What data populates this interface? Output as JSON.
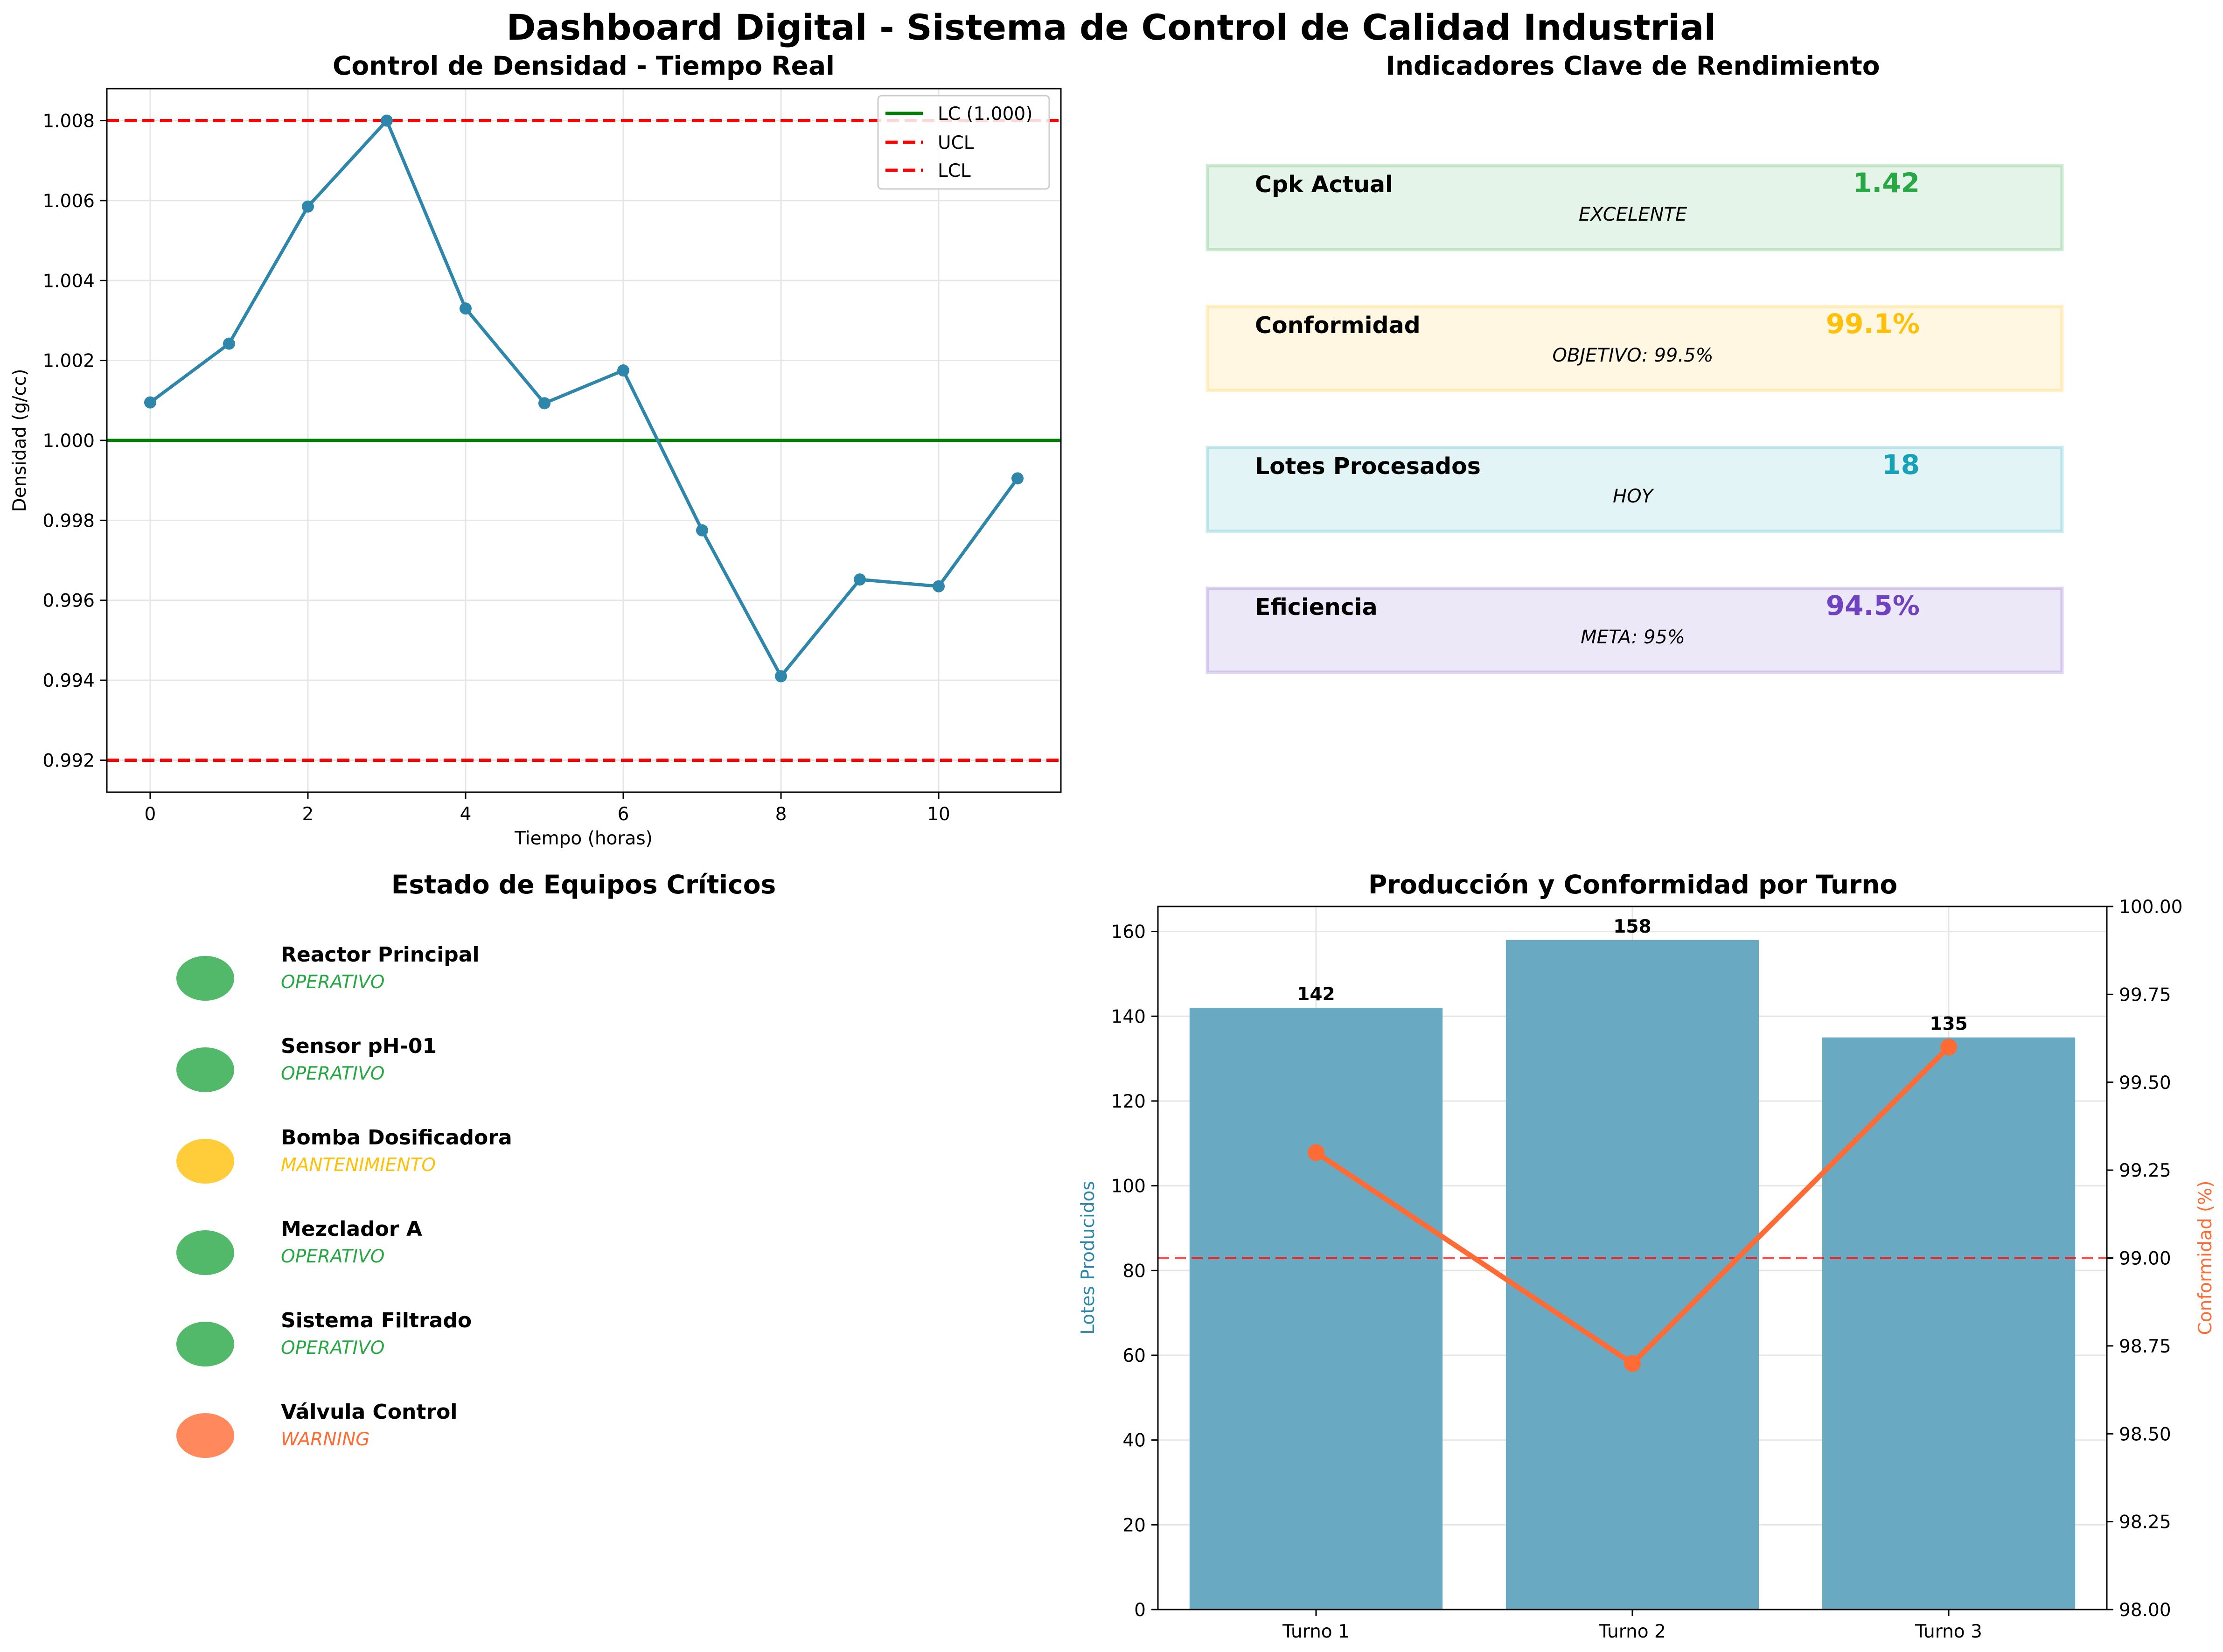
{
  "suptitle": "Dashboard Digital - Sistema de Control de Calidad Industrial",
  "colors": {
    "density_line": "#2e86ab",
    "center_line": "#008000",
    "limit_line": "#ff0000",
    "bar": "#6aa9c2",
    "conformity_line": "#ff6b35",
    "green": "#28a745",
    "yellow": "#ffc107",
    "teal": "#17a2b8",
    "purple": "#6f42c1",
    "orange": "#ff6b35"
  },
  "chart_data": [
    {
      "type": "line",
      "title": "Control de Densidad - Tiempo Real",
      "xlabel": "Tiempo (horas)",
      "ylabel": "Densidad (g/cc)",
      "x": [
        0,
        1,
        2,
        3,
        4,
        5,
        6,
        7,
        8,
        9,
        10,
        11
      ],
      "series": [
        {
          "values": [
            1.00095,
            1.00242,
            1.00585,
            1.008,
            1.0033,
            1.00093,
            1.00175,
            0.99775,
            0.9941,
            0.99652,
            0.99635,
            0.99905
          ]
        }
      ],
      "reference_lines": [
        {
          "name": "LC (1.000)",
          "value": 1.0,
          "style": "solid",
          "color": "#008000"
        },
        {
          "name": "UCL",
          "value": 1.008,
          "style": "dashed",
          "color": "#ff0000"
        },
        {
          "name": "LCL",
          "value": 0.992,
          "style": "dashed",
          "color": "#ff0000"
        }
      ],
      "xlim": [
        -0.55,
        11.55
      ],
      "ylim": [
        0.9912,
        1.0088
      ],
      "xticks": [
        "0",
        "2",
        "4",
        "6",
        "8",
        "10"
      ],
      "xtick_values": [
        0,
        2,
        4,
        6,
        8,
        10
      ],
      "yticks": [
        "0.992",
        "0.994",
        "0.996",
        "0.998",
        "1.000",
        "1.002",
        "1.004",
        "1.006",
        "1.008"
      ],
      "ytick_values": [
        0.992,
        0.994,
        0.996,
        0.998,
        1.0,
        1.002,
        1.004,
        1.006,
        1.008
      ],
      "grid": true,
      "legend": {
        "position": "top-right",
        "entries": [
          "LC (1.000)",
          "UCL",
          "LCL"
        ]
      }
    },
    {
      "type": "bar",
      "title": "Producción y Conformidad por Turno",
      "categories": [
        "Turno 1",
        "Turno 2",
        "Turno 3"
      ],
      "series": [
        {
          "axis": "left",
          "values": [
            142,
            158,
            135
          ],
          "data_labels": [
            "142",
            "158",
            "135"
          ]
        },
        {
          "axis": "right",
          "type": "line",
          "values": [
            99.3,
            98.7,
            99.6
          ]
        }
      ],
      "reference_lines": [
        {
          "axis": "right",
          "value": 99.0,
          "style": "dashed",
          "color": "#ff0000"
        }
      ],
      "ylabel": "Lotes Producidos",
      "ylabel_right": "Conformidad (%)",
      "ylim": [
        0,
        165.9
      ],
      "ylim_right": [
        98.0,
        100.0
      ],
      "yticks": [
        "0",
        "20",
        "40",
        "60",
        "80",
        "100",
        "120",
        "140",
        "160"
      ],
      "ytick_values": [
        0,
        20,
        40,
        60,
        80,
        100,
        120,
        140,
        160
      ],
      "yticks_right": [
        "98.00",
        "98.25",
        "98.50",
        "98.75",
        "99.00",
        "99.25",
        "99.50",
        "99.75",
        "100.00"
      ],
      "ytick_values_right": [
        98.0,
        98.25,
        98.5,
        98.75,
        99.0,
        99.25,
        99.5,
        99.75,
        100.0
      ],
      "grid": true
    }
  ],
  "kpi_panel": {
    "title": "Indicadores Clave de Rendimiento",
    "items": [
      {
        "label": "Cpk Actual",
        "value": "1.42",
        "sub": "EXCELENTE",
        "color": "#28a745"
      },
      {
        "label": "Conformidad",
        "value": "99.1%",
        "sub": "OBJETIVO: 99.5%",
        "color": "#ffc107"
      },
      {
        "label": "Lotes Procesados",
        "value": "18",
        "sub": "HOY",
        "color": "#17a2b8"
      },
      {
        "label": "Eficiencia",
        "value": "94.5%",
        "sub": "META: 95%",
        "color": "#6f42c1"
      }
    ]
  },
  "equipment_panel": {
    "title": "Estado de Equipos Críticos",
    "items": [
      {
        "name": "Reactor Principal",
        "status": "OPERATIVO",
        "color": "#28a745"
      },
      {
        "name": "Sensor pH-01",
        "status": "OPERATIVO",
        "color": "#28a745"
      },
      {
        "name": "Bomba Dosificadora",
        "status": "MANTENIMIENTO",
        "color": "#ffc107"
      },
      {
        "name": "Mezclador A",
        "status": "OPERATIVO",
        "color": "#28a745"
      },
      {
        "name": "Sistema Filtrado",
        "status": "OPERATIVO",
        "color": "#28a745"
      },
      {
        "name": "Válvula Control",
        "status": "WARNING",
        "color": "#ff6b35"
      }
    ]
  }
}
